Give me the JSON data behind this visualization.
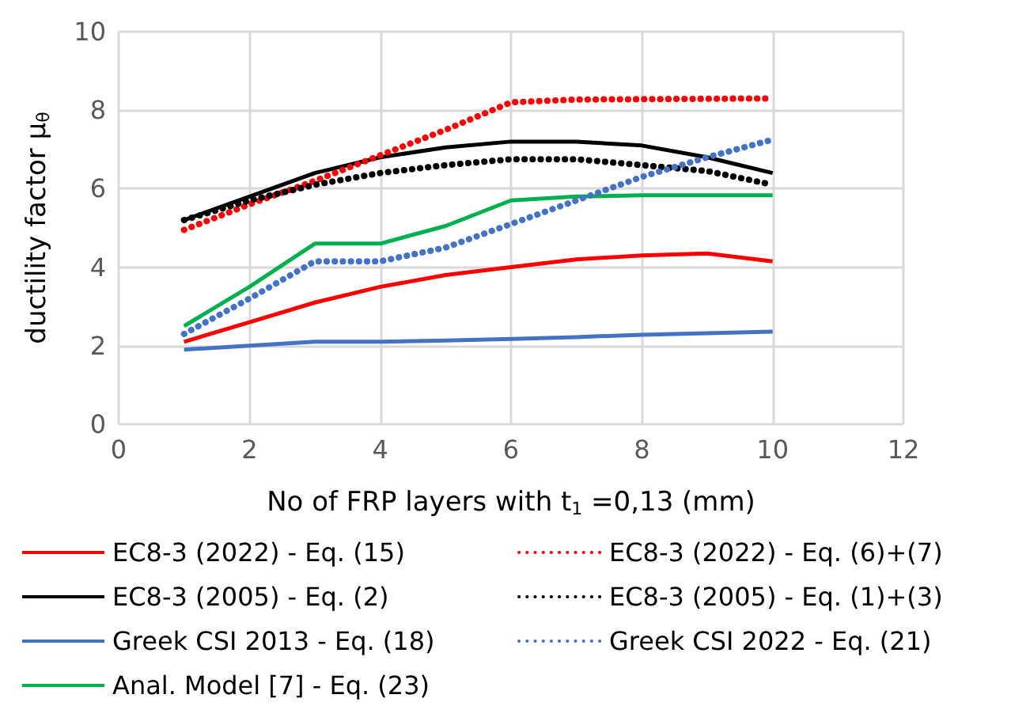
{
  "chart_data": {
    "type": "line",
    "xlabel": "No of FRP layers with t$_{1}$ =0,13 (mm)",
    "ylabel": "ductility factor μ$_{θ}$",
    "x": [
      1,
      2,
      3,
      4,
      5,
      6,
      7,
      8,
      9,
      10
    ],
    "xlim": [
      0,
      12
    ],
    "xticks": [
      0,
      2,
      4,
      6,
      8,
      10,
      12
    ],
    "ylim": [
      0,
      10
    ],
    "yticks": [
      0,
      2,
      4,
      6,
      8,
      10
    ],
    "grid": true,
    "legend": "bottom",
    "marker": "none",
    "series": [
      {
        "name": "EC8-3 (2022) - Eq. (15)",
        "color": "#ff0000",
        "line_style": "solid",
        "values": [
          2.1,
          2.6,
          3.1,
          3.5,
          3.8,
          4.0,
          4.2,
          4.3,
          4.35,
          4.15
        ]
      },
      {
        "name": "EC8-3 (2005) - Eq. (2)",
        "color": "#000000",
        "line_style": "solid",
        "values": [
          5.2,
          5.8,
          6.4,
          6.8,
          7.05,
          7.2,
          7.2,
          7.1,
          6.8,
          6.4
        ]
      },
      {
        "name": "Greek CSI 2013 - Eq. (18)",
        "color": "#4472c4",
        "line_style": "solid",
        "values": [
          1.9,
          2.0,
          2.1,
          2.1,
          2.13,
          2.17,
          2.22,
          2.28,
          2.32,
          2.36
        ]
      },
      {
        "name": "Anal. Model [7] - Eq. (23)",
        "color": "#00b050",
        "line_style": "solid",
        "values": [
          2.5,
          3.5,
          4.6,
          4.6,
          5.05,
          5.7,
          5.8,
          5.83,
          5.83,
          5.83
        ]
      },
      {
        "name": "EC8-3 (2022) - Eq. (6)+(7)",
        "color": "#ff0000",
        "line_style": "dotted",
        "values": [
          4.95,
          5.6,
          6.2,
          6.85,
          7.5,
          8.2,
          8.27,
          8.28,
          8.29,
          8.3
        ]
      },
      {
        "name": "EC8-3 (2005) - Eq. (1)+(3)",
        "color": "#000000",
        "line_style": "dotted",
        "values": [
          5.2,
          5.7,
          6.1,
          6.4,
          6.6,
          6.75,
          6.75,
          6.6,
          6.45,
          6.1
        ]
      },
      {
        "name": "Greek CSI 2022 - Eq. (21)",
        "color": "#4472c4",
        "line_style": "dotted",
        "values": [
          2.3,
          3.2,
          4.15,
          4.15,
          4.5,
          5.1,
          5.7,
          6.3,
          6.8,
          7.25
        ]
      }
    ]
  }
}
